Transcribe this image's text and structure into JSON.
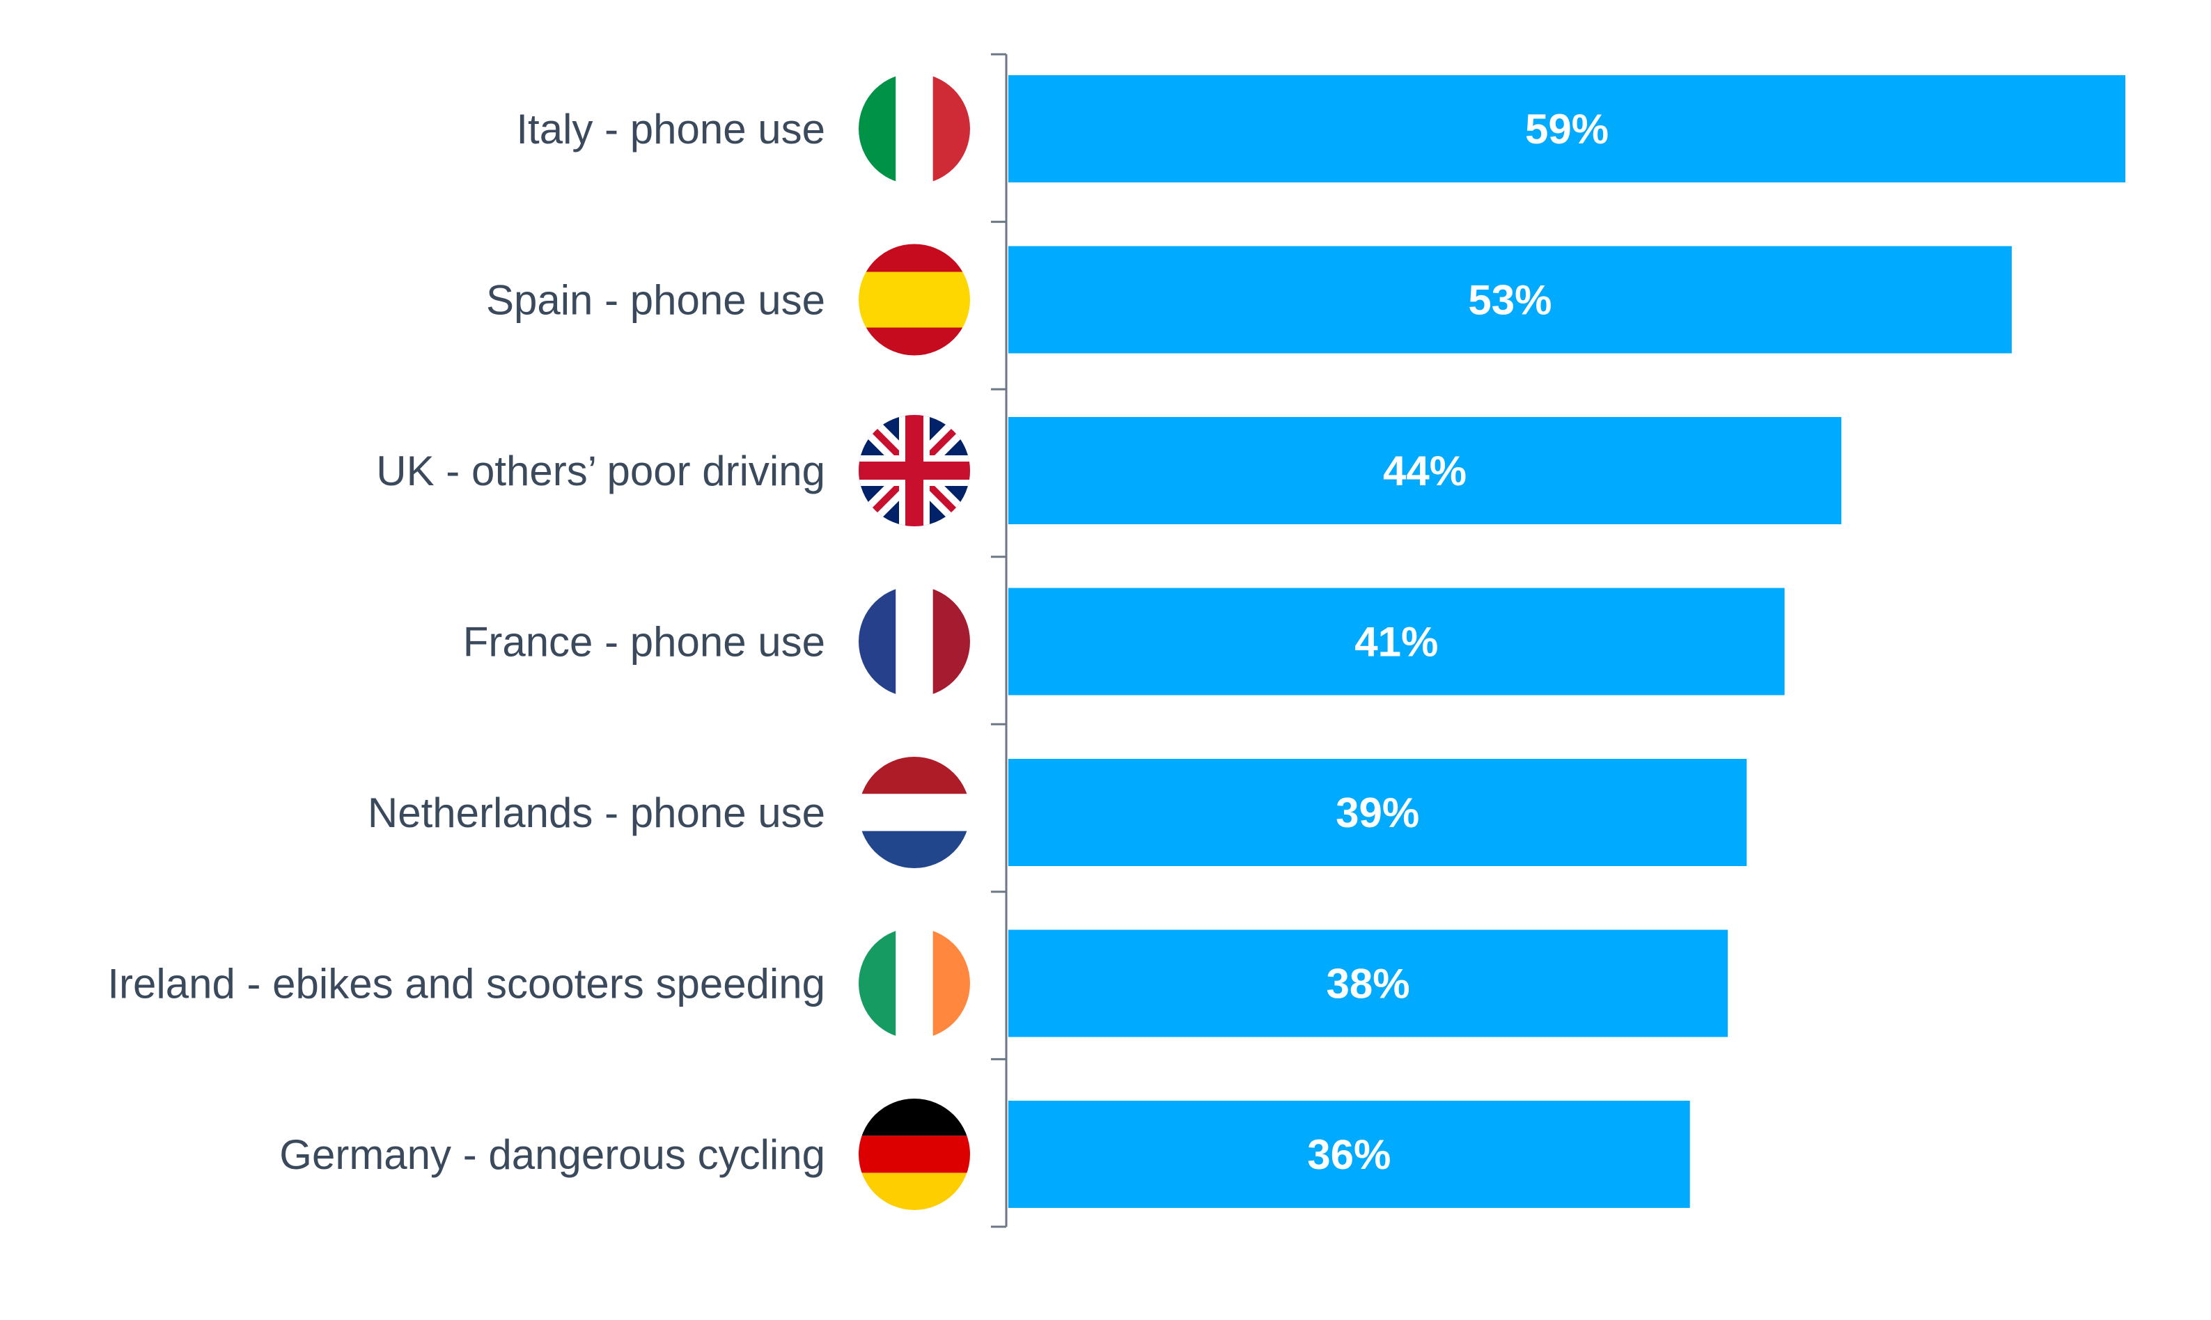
{
  "chart_data": {
    "type": "bar",
    "orientation": "horizontal",
    "categories": [
      "Italy - phone use",
      "Spain - phone use",
      "UK - others’ poor driving",
      "France - phone use",
      "Netherlands - phone use",
      "Ireland - ebikes and scooters speeding",
      "Germany - dangerous cycling"
    ],
    "values": [
      59,
      53,
      44,
      41,
      39,
      38,
      36
    ],
    "value_labels": [
      "59%",
      "53%",
      "44%",
      "41%",
      "39%",
      "38%",
      "36%"
    ],
    "flags": [
      "italy-flag",
      "spain-flag",
      "uk-flag",
      "france-flag",
      "netherlands-flag",
      "ireland-flag",
      "germany-flag"
    ],
    "xlim": [
      0,
      59
    ],
    "grid": false,
    "bar_color": "#00aaff",
    "axis_color": "#6b7785",
    "label_color": "#3a4a5c"
  }
}
